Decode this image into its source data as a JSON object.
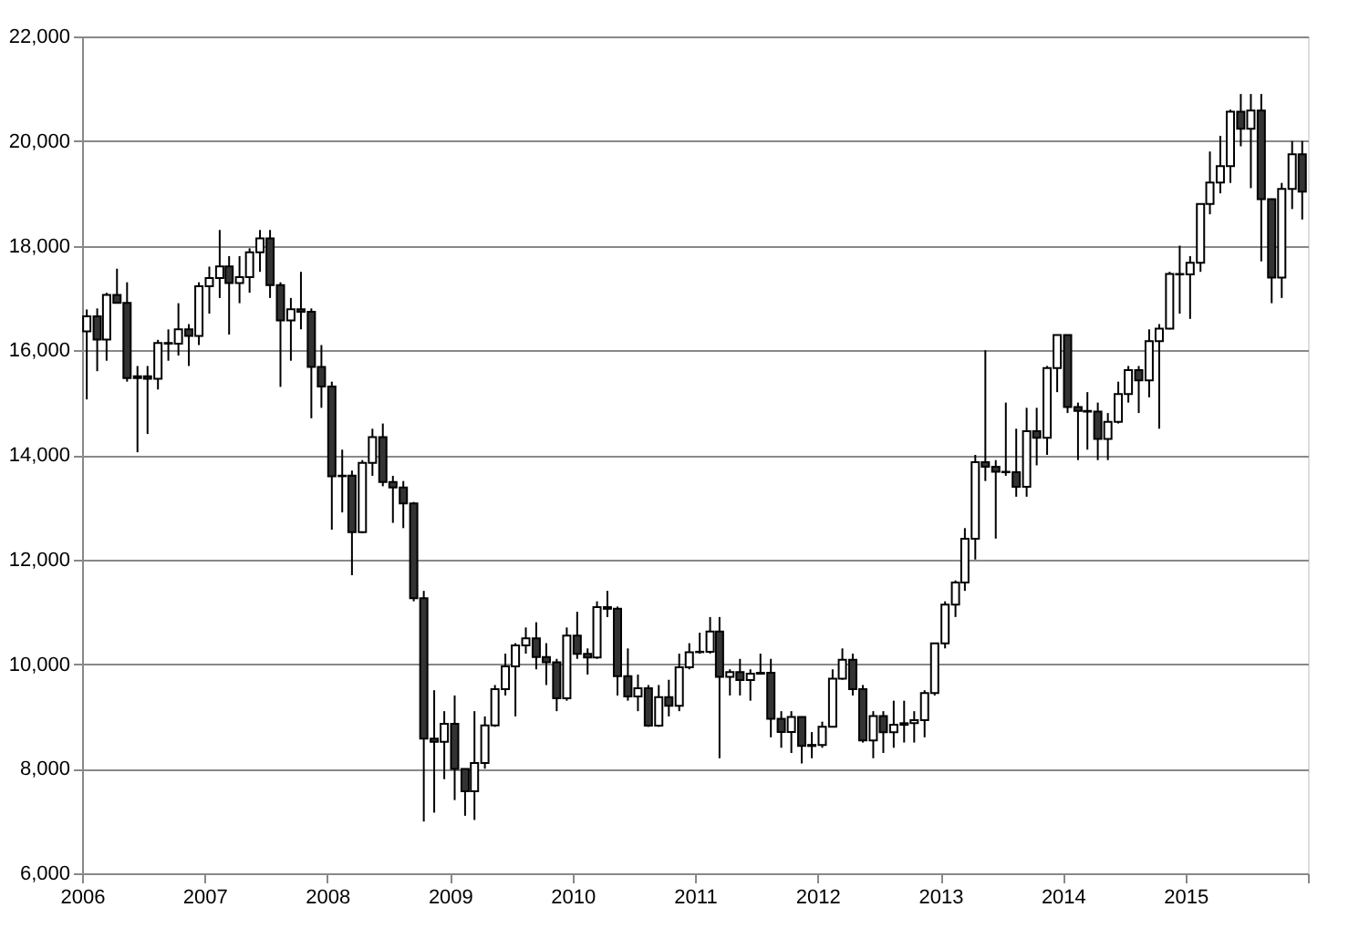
{
  "chart_data": {
    "type": "candlestick",
    "x": [
      "2006-01-15",
      "2006-02-15",
      "2006-03-15",
      "2006-04-15",
      "2006-05-15",
      "2006-06-15",
      "2006-07-15",
      "2006-08-15",
      "2006-09-15",
      "2006-10-15",
      "2006-11-15",
      "2006-12-15",
      "2007-01-15",
      "2007-02-15",
      "2007-03-15",
      "2007-04-15",
      "2007-05-15",
      "2007-06-15",
      "2007-07-15",
      "2007-08-15",
      "2007-09-15",
      "2007-10-15",
      "2007-11-15",
      "2007-12-15",
      "2008-01-15",
      "2008-02-15",
      "2008-03-15",
      "2008-04-15",
      "2008-05-15",
      "2008-06-15",
      "2008-07-15",
      "2008-08-15",
      "2008-09-15",
      "2008-10-15",
      "2008-11-15",
      "2008-12-15",
      "2009-01-15",
      "2009-02-15",
      "2009-03-15",
      "2009-04-15",
      "2009-05-15",
      "2009-06-15",
      "2009-07-15",
      "2009-08-15",
      "2009-09-15",
      "2009-10-15",
      "2009-11-15",
      "2009-12-15",
      "2010-01-15",
      "2010-02-15",
      "2010-03-15",
      "2010-04-15",
      "2010-05-15",
      "2010-06-15",
      "2010-07-15",
      "2010-08-15",
      "2010-09-15",
      "2010-10-15",
      "2010-11-15",
      "2010-12-15",
      "2011-01-15",
      "2011-02-15",
      "2011-03-15",
      "2011-04-15",
      "2011-05-15",
      "2011-06-15",
      "2011-07-15",
      "2011-08-15",
      "2011-09-15",
      "2011-10-15",
      "2011-11-15",
      "2011-12-15",
      "2012-01-15",
      "2012-02-15",
      "2012-03-15",
      "2012-04-15",
      "2012-05-15",
      "2012-06-15",
      "2012-07-15",
      "2012-08-15",
      "2012-09-15",
      "2012-10-15",
      "2012-11-15",
      "2012-12-15",
      "2013-01-15",
      "2013-02-15",
      "2013-03-15",
      "2013-04-15",
      "2013-05-15",
      "2013-06-15",
      "2013-07-15",
      "2013-08-15",
      "2013-09-15",
      "2013-10-15",
      "2013-11-15",
      "2013-12-15",
      "2014-01-15",
      "2014-02-15",
      "2014-03-15",
      "2014-04-15",
      "2014-05-15",
      "2014-06-15",
      "2014-07-15",
      "2014-08-15",
      "2014-09-15",
      "2014-10-15",
      "2014-11-15",
      "2014-12-15",
      "2015-01-15",
      "2015-02-15",
      "2015-03-15",
      "2015-04-15",
      "2015-05-15",
      "2015-06-15",
      "2015-07-15",
      "2015-08-15",
      "2015-09-15",
      "2015-10-15",
      "2015-11-15",
      "2015-12-15"
    ],
    "ohlc": [
      [
        16361,
        16780,
        15060,
        16650
      ],
      [
        16650,
        16800,
        15600,
        16205
      ],
      [
        16205,
        17100,
        15800,
        17059
      ],
      [
        17059,
        17560,
        16900,
        16906
      ],
      [
        16906,
        17300,
        15400,
        15467
      ],
      [
        15467,
        15700,
        14050,
        15505
      ],
      [
        15505,
        15700,
        14400,
        15456
      ],
      [
        15456,
        16200,
        15250,
        16140
      ],
      [
        16140,
        16400,
        15800,
        16127
      ],
      [
        16127,
        16900,
        15900,
        16399
      ],
      [
        16399,
        16500,
        15700,
        16274
      ],
      [
        16274,
        17300,
        16100,
        17225
      ],
      [
        17225,
        17600,
        16700,
        17383
      ],
      [
        17383,
        18300,
        17000,
        17604
      ],
      [
        17604,
        17800,
        16300,
        17287
      ],
      [
        17287,
        17800,
        16900,
        17400
      ],
      [
        17400,
        17950,
        17100,
        17875
      ],
      [
        17875,
        18300,
        17500,
        18138
      ],
      [
        18138,
        18300,
        17000,
        17248
      ],
      [
        17248,
        17300,
        15300,
        16569
      ],
      [
        16569,
        17000,
        15800,
        16785
      ],
      [
        16785,
        17500,
        16400,
        16737
      ],
      [
        16737,
        16800,
        14700,
        15680
      ],
      [
        15680,
        16100,
        14900,
        15307
      ],
      [
        15307,
        15400,
        12570,
        13592
      ],
      [
        13592,
        14100,
        12900,
        13603
      ],
      [
        13603,
        13700,
        11700,
        12525
      ],
      [
        12525,
        13900,
        12500,
        13849
      ],
      [
        13849,
        14500,
        13600,
        14338
      ],
      [
        14338,
        14600,
        13400,
        13481
      ],
      [
        13481,
        13600,
        12700,
        13376
      ],
      [
        13376,
        13500,
        12600,
        13072
      ],
      [
        13072,
        13100,
        11200,
        11259
      ],
      [
        11259,
        11400,
        6990,
        8576
      ],
      [
        8576,
        9500,
        7160,
        8512
      ],
      [
        8512,
        9100,
        7800,
        8859
      ],
      [
        8859,
        9400,
        7400,
        7994
      ],
      [
        7994,
        8000,
        7100,
        7568
      ],
      [
        7568,
        9100,
        7020,
        8109
      ],
      [
        8109,
        9000,
        8000,
        8828
      ],
      [
        8828,
        9600,
        8800,
        9522
      ],
      [
        9522,
        10200,
        9400,
        9958
      ],
      [
        9958,
        10400,
        9000,
        10356
      ],
      [
        10356,
        10700,
        10200,
        10492
      ],
      [
        10492,
        10800,
        9900,
        10133
      ],
      [
        10133,
        10400,
        9600,
        10034
      ],
      [
        10034,
        10100,
        9100,
        9345
      ],
      [
        9345,
        10700,
        9300,
        10546
      ],
      [
        10546,
        11000,
        10100,
        10198
      ],
      [
        10198,
        10300,
        9800,
        10126
      ],
      [
        10126,
        11200,
        10100,
        11089
      ],
      [
        11089,
        11400,
        10900,
        11057
      ],
      [
        11057,
        11100,
        9400,
        9768
      ],
      [
        9768,
        10300,
        9300,
        9382
      ],
      [
        9382,
        9800,
        9100,
        9537
      ],
      [
        9537,
        9600,
        8800,
        8824
      ],
      [
        8824,
        9600,
        8800,
        9369
      ],
      [
        9369,
        9700,
        9000,
        9202
      ],
      [
        9202,
        10200,
        9100,
        9937
      ],
      [
        9937,
        10400,
        9900,
        10228
      ],
      [
        10228,
        10600,
        10200,
        10237
      ],
      [
        10237,
        10900,
        10200,
        10624
      ],
      [
        10624,
        10900,
        8200,
        9755
      ],
      [
        9755,
        9900,
        9400,
        9849
      ],
      [
        9849,
        10100,
        9400,
        9693
      ],
      [
        9693,
        9900,
        9300,
        9816
      ],
      [
        9816,
        10200,
        9800,
        9833
      ],
      [
        9833,
        10100,
        8600,
        8955
      ],
      [
        8955,
        9100,
        8400,
        8700
      ],
      [
        8700,
        9100,
        8300,
        8988
      ],
      [
        8988,
        9000,
        8100,
        8434
      ],
      [
        8434,
        8700,
        8200,
        8455
      ],
      [
        8455,
        8900,
        8400,
        8802
      ],
      [
        8802,
        9900,
        8800,
        9723
      ],
      [
        9723,
        10300,
        9700,
        10083
      ],
      [
        10083,
        10200,
        9400,
        9520
      ],
      [
        9520,
        9600,
        8500,
        8542
      ],
      [
        8542,
        9100,
        8200,
        9006
      ],
      [
        9006,
        9100,
        8300,
        8695
      ],
      [
        8695,
        9300,
        8400,
        8839
      ],
      [
        8839,
        9300,
        8500,
        8870
      ],
      [
        8870,
        9100,
        8500,
        8928
      ],
      [
        8928,
        9500,
        8600,
        9446
      ],
      [
        9446,
        10400,
        9400,
        10395
      ],
      [
        10395,
        11200,
        10300,
        11138
      ],
      [
        11138,
        11600,
        10900,
        11559
      ],
      [
        11559,
        12600,
        11400,
        12397
      ],
      [
        12397,
        14000,
        12000,
        13860
      ],
      [
        13860,
        16000,
        13500,
        13774
      ],
      [
        13774,
        13900,
        12400,
        13677
      ],
      [
        13677,
        15000,
        13600,
        13668
      ],
      [
        13668,
        14500,
        13200,
        13388
      ],
      [
        13388,
        14900,
        13200,
        14455
      ],
      [
        14455,
        14900,
        13800,
        14327
      ],
      [
        14327,
        15700,
        14000,
        15662
      ],
      [
        15662,
        16300,
        15200,
        16291
      ],
      [
        16291,
        16300,
        14800,
        14914
      ],
      [
        14914,
        15000,
        13900,
        14841
      ],
      [
        14841,
        15200,
        14100,
        14827
      ],
      [
        14827,
        15000,
        13900,
        14304
      ],
      [
        14304,
        14800,
        13900,
        14632
      ],
      [
        14632,
        15400,
        14600,
        15162
      ],
      [
        15162,
        15700,
        15000,
        15620
      ],
      [
        15620,
        15700,
        14800,
        15425
      ],
      [
        15425,
        16400,
        15100,
        16173
      ],
      [
        16173,
        16500,
        14500,
        16413
      ],
      [
        16413,
        17500,
        16400,
        17459
      ],
      [
        17459,
        18000,
        16700,
        17450
      ],
      [
        17450,
        17800,
        16600,
        17674
      ],
      [
        17674,
        18800,
        17500,
        18797
      ],
      [
        18797,
        19800,
        18600,
        19206
      ],
      [
        19206,
        20100,
        19000,
        19520
      ],
      [
        19520,
        20600,
        19200,
        20563
      ],
      [
        20563,
        20900,
        19900,
        20235
      ],
      [
        20235,
        20900,
        19100,
        20585
      ],
      [
        20585,
        20900,
        17700,
        18890
      ],
      [
        18890,
        18900,
        16900,
        17388
      ],
      [
        17388,
        19200,
        17000,
        19083
      ],
      [
        19083,
        20000,
        18700,
        19747
      ],
      [
        19747,
        20000,
        18500,
        19033
      ]
    ],
    "xlim": [
      "2006-01-01",
      "2016-01-01"
    ],
    "xticks": [
      {
        "value": "2006-01-01",
        "label": "2006"
      },
      {
        "value": "2007-01-01",
        "label": "2007"
      },
      {
        "value": "2008-01-01",
        "label": "2008"
      },
      {
        "value": "2009-01-01",
        "label": "2009"
      },
      {
        "value": "2010-01-01",
        "label": "2010"
      },
      {
        "value": "2011-01-01",
        "label": "2011"
      },
      {
        "value": "2012-01-01",
        "label": "2012"
      },
      {
        "value": "2013-01-01",
        "label": "2013"
      },
      {
        "value": "2014-01-01",
        "label": "2014"
      },
      {
        "value": "2015-01-01",
        "label": "2015"
      },
      {
        "value": "2016-01-01",
        "label": null
      }
    ],
    "ylim": [
      6000,
      22000
    ],
    "yticks": [
      {
        "value": 6000,
        "label": "6,000"
      },
      {
        "value": 8000,
        "label": "8,000"
      },
      {
        "value": 10000,
        "label": "10,000"
      },
      {
        "value": 12000,
        "label": "12,000"
      },
      {
        "value": 14000,
        "label": "14,000"
      },
      {
        "value": 16000,
        "label": "16,000"
      },
      {
        "value": 18000,
        "label": "18,000"
      },
      {
        "value": 20000,
        "label": "20,000"
      },
      {
        "value": 22000,
        "label": "22,000"
      }
    ],
    "grid": "y"
  }
}
